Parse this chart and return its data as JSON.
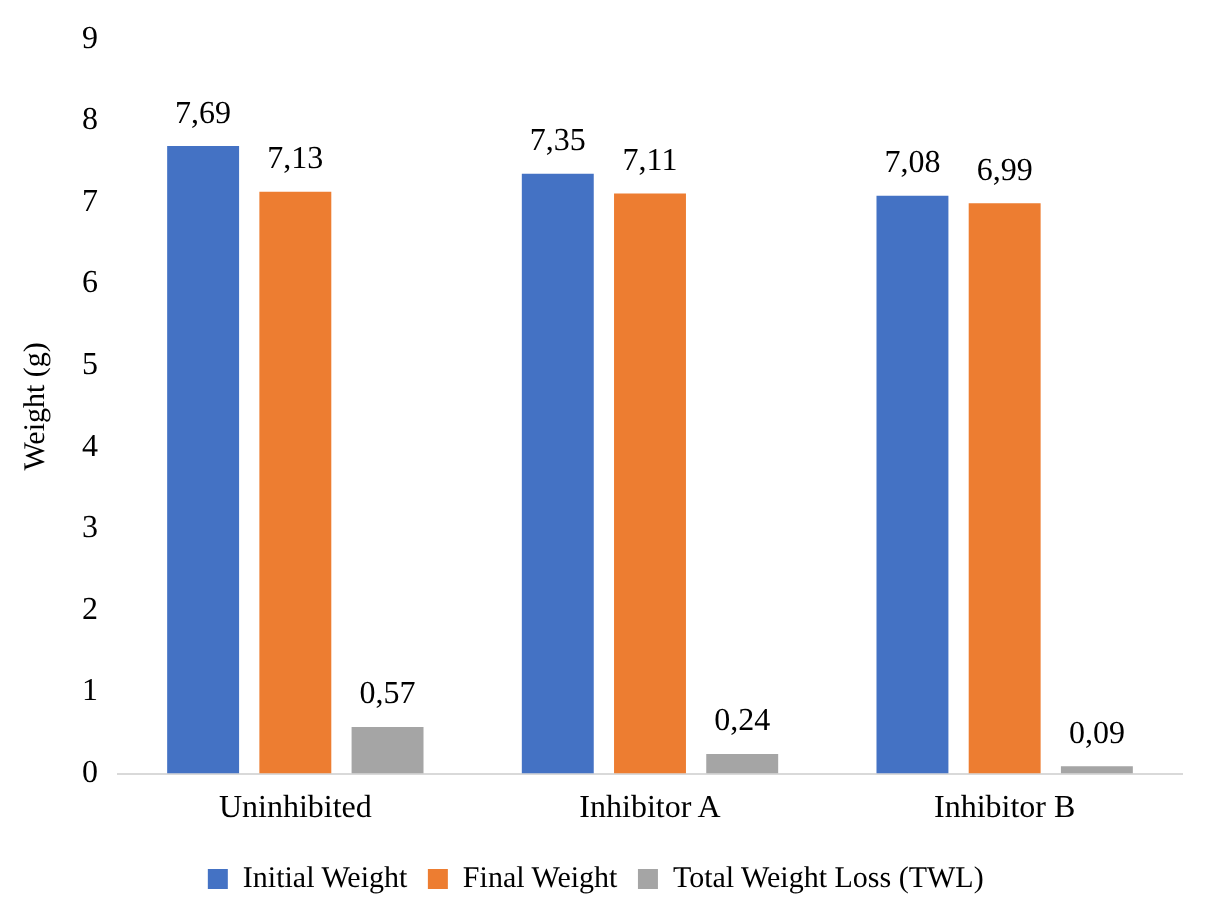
{
  "chart_data": {
    "type": "bar",
    "ylabel": "Weight (g)",
    "categories": [
      "Uninhibited",
      "Inhibitor A",
      "Inhibitor B"
    ],
    "series": [
      {
        "name": "Initial Weight",
        "color": "#4472c4",
        "values": [
          7.69,
          7.35,
          7.08
        ],
        "value_labels": [
          "7,69",
          "7,35",
          "7,08"
        ]
      },
      {
        "name": "Final Weight",
        "color": "#ed7d31",
        "values": [
          7.13,
          7.11,
          6.99
        ],
        "value_labels": [
          "7,13",
          "7,11",
          "6,99"
        ]
      },
      {
        "name": "Total Weight Loss (TWL)",
        "color": "#a5a5a5",
        "values": [
          0.57,
          0.24,
          0.09
        ],
        "value_labels": [
          "0,57",
          "0,24",
          "0,09"
        ]
      }
    ],
    "ylim": [
      0,
      9
    ],
    "yticks": [
      0,
      1,
      2,
      3,
      4,
      5,
      6,
      7,
      8,
      9
    ],
    "grid": false,
    "legend": "bottom"
  }
}
